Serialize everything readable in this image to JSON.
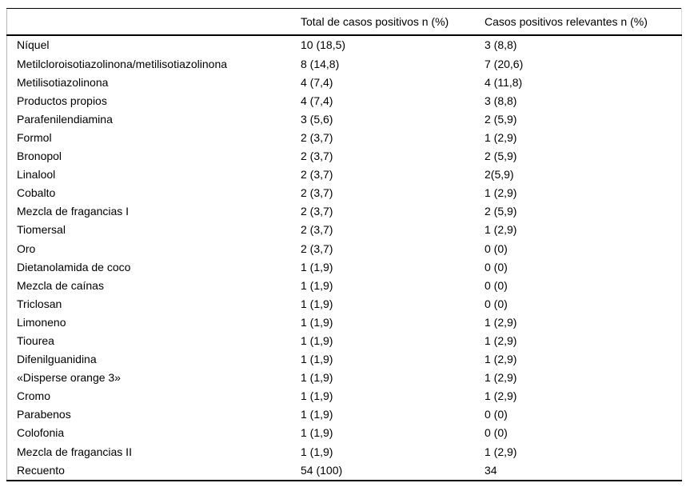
{
  "table": {
    "columns": [
      "",
      "Total de casos positivos n (%)",
      "Casos positivos relevantes n (%)"
    ],
    "rows": [
      {
        "substance": "Níquel",
        "total": "10 (18,5)",
        "relevant": "3 (8,8)"
      },
      {
        "substance": "Metilcloroisotiazolinona/metilisotiazolinona",
        "total": "8 (14,8)",
        "relevant": "7 (20,6)"
      },
      {
        "substance": "Metilisotiazolinona",
        "total": "4 (7,4)",
        "relevant": "4 (11,8)"
      },
      {
        "substance": "Productos propios",
        "total": "4 (7,4)",
        "relevant": "3 (8,8)"
      },
      {
        "substance": "Parafenilendiamina",
        "total": "3 (5,6)",
        "relevant": "2 (5,9)"
      },
      {
        "substance": "Formol",
        "total": "2 (3,7)",
        "relevant": "1 (2,9)"
      },
      {
        "substance": "Bronopol",
        "total": "2 (3,7)",
        "relevant": "2 (5,9)"
      },
      {
        "substance": "Linalool",
        "total": "2 (3,7)",
        "relevant": "2(5,9)"
      },
      {
        "substance": "Cobalto",
        "total": "2 (3,7)",
        "relevant": "1 (2,9)"
      },
      {
        "substance": "Mezcla de fragancias I",
        "total": "2 (3,7)",
        "relevant": "2 (5,9)"
      },
      {
        "substance": "Tiomersal",
        "total": "2 (3,7)",
        "relevant": "1 (2,9)"
      },
      {
        "substance": "Oro",
        "total": "2 (3,7)",
        "relevant": "0 (0)"
      },
      {
        "substance": "Dietanolamida de coco",
        "total": "1 (1,9)",
        "relevant": "0 (0)"
      },
      {
        "substance": "Mezcla de caínas",
        "total": "1 (1,9)",
        "relevant": "0 (0)"
      },
      {
        "substance": "Triclosan",
        "total": "1 (1,9)",
        "relevant": "0 (0)"
      },
      {
        "substance": "Limoneno",
        "total": "1 (1,9)",
        "relevant": "1 (2,9)"
      },
      {
        "substance": "Tiourea",
        "total": "1 (1,9)",
        "relevant": "1 (2,9)"
      },
      {
        "substance": "Difenilguanidina",
        "total": "1 (1,9)",
        "relevant": "1 (2,9)"
      },
      {
        "substance": "«Disperse orange 3»",
        "total": "1 (1,9)",
        "relevant": "1 (2,9)"
      },
      {
        "substance": "Cromo",
        "total": "1 (1,9)",
        "relevant": "1 (2,9)"
      },
      {
        "substance": "Parabenos",
        "total": "1 (1,9)",
        "relevant": "0 (0)"
      },
      {
        "substance": "Colofonia",
        "total": "1 (1,9)",
        "relevant": "0 (0)"
      },
      {
        "substance": "Mezcla de fragancias II",
        "total": "1 (1,9)",
        "relevant": "1 (2,9)"
      },
      {
        "substance": "Recuento",
        "total": "54 (100)",
        "relevant": "34"
      }
    ]
  }
}
